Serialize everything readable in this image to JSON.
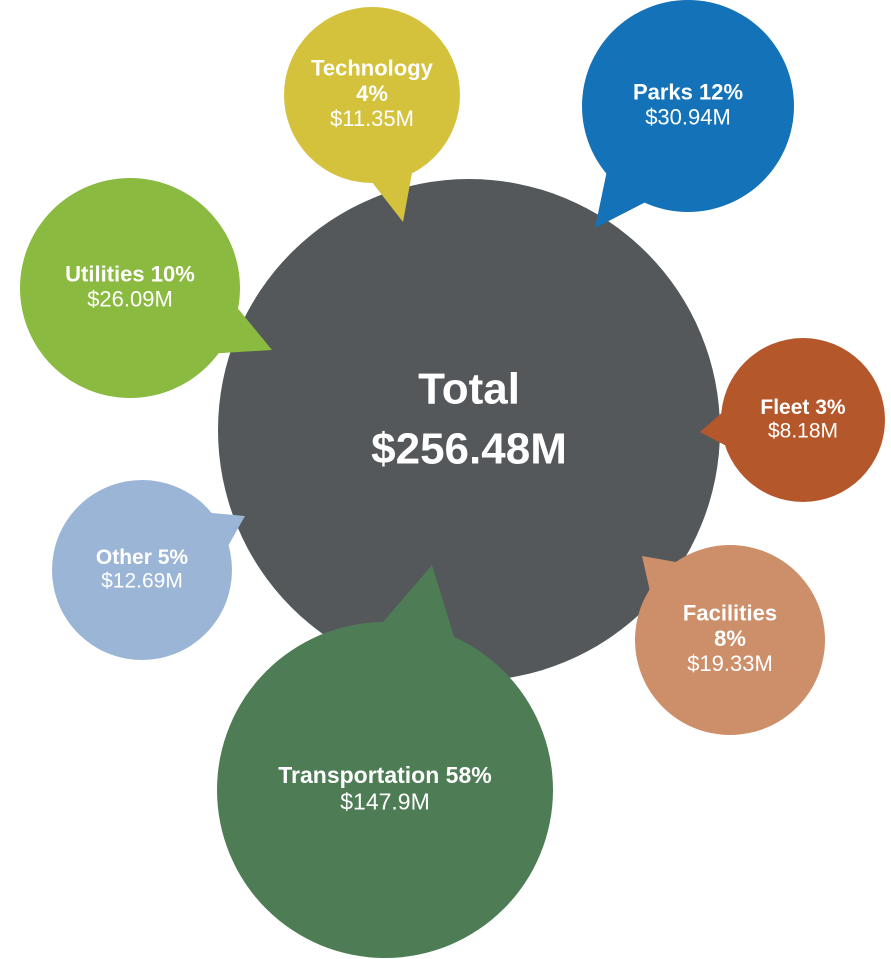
{
  "center": {
    "label": "Total",
    "amount": "$256.48M",
    "color": "#54585a"
  },
  "nodes": [
    {
      "name": "Technology",
      "share": "4%",
      "amount": "$11.35M",
      "color": "#d4c13c"
    },
    {
      "name": "Parks",
      "share": "12%",
      "amount": "$30.94M",
      "color": "#1372b8"
    },
    {
      "name": "Utilities",
      "share": "10%",
      "amount": "$26.09M",
      "color": "#8aba3f"
    },
    {
      "name": "Fleet",
      "share": "3%",
      "amount": "$8.18M",
      "color": "#b4582c"
    },
    {
      "name": "Other",
      "share": "5%",
      "amount": "$12.69M",
      "color": "#9bb5d6"
    },
    {
      "name": "Facilities",
      "share": "8%",
      "amount": "$19.33M",
      "color": "#cc8f6a"
    },
    {
      "name": "Transportation",
      "share": "58%",
      "amount": "$147.9M",
      "color": "#4e7c55"
    }
  ]
}
